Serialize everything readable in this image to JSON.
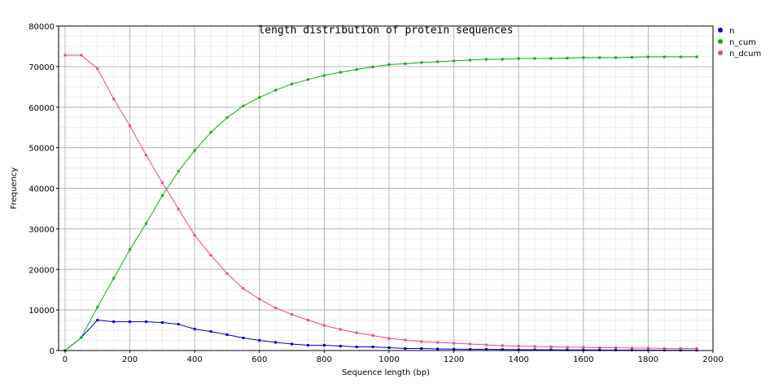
{
  "chart_data": {
    "type": "line",
    "title": "length distribution of protein sequences",
    "xlabel": "Sequence length (bp)",
    "ylabel": "Frequency",
    "xlim": [
      -20,
      2000
    ],
    "ylim": [
      0,
      80000
    ],
    "x_ticks": [
      "0",
      "200",
      "400",
      "600",
      "800",
      "1000",
      "1200",
      "1400",
      "1600",
      "1800",
      "2000"
    ],
    "y_ticks": [
      "0",
      "10000",
      "20000",
      "30000",
      "40000",
      "50000",
      "60000",
      "70000",
      "80000"
    ],
    "grid": true,
    "legend_position": "right",
    "x": [
      0,
      50,
      100,
      150,
      200,
      250,
      300,
      350,
      400,
      450,
      500,
      550,
      600,
      650,
      700,
      750,
      800,
      850,
      900,
      950,
      1000,
      1050,
      1100,
      1150,
      1200,
      1250,
      1300,
      1350,
      1400,
      1450,
      1500,
      1550,
      1600,
      1650,
      1700,
      1750,
      1800,
      1850,
      1900,
      1950
    ],
    "series": [
      {
        "name": "n",
        "color": "#0000cc",
        "values": [
          0,
          3200,
          7500,
          7100,
          7100,
          7100,
          6900,
          6500,
          5300,
          4700,
          3900,
          3100,
          2500,
          2000,
          1600,
          1300,
          1300,
          1100,
          900,
          900,
          700,
          500,
          500,
          400,
          350,
          300,
          300,
          250,
          200,
          200,
          180,
          150,
          150,
          120,
          100,
          100,
          100,
          90,
          80,
          80
        ]
      },
      {
        "name": "n_cum",
        "color": "#11aa11",
        "values": [
          0,
          3200,
          10700,
          17800,
          24900,
          31300,
          38200,
          44200,
          49300,
          53800,
          57400,
          60300,
          62400,
          64200,
          65700,
          66800,
          67800,
          68600,
          69300,
          69900,
          70500,
          70700,
          71000,
          71200,
          71400,
          71600,
          71800,
          71800,
          72000,
          72000,
          72000,
          72100,
          72200,
          72200,
          72200,
          72300,
          72400,
          72400,
          72400,
          72400
        ]
      },
      {
        "name": "n_dcum",
        "color": "#ee4488",
        "values": [
          72800,
          72800,
          69500,
          62000,
          55400,
          48200,
          41400,
          34900,
          28400,
          23500,
          19000,
          15300,
          12700,
          10500,
          8900,
          7500,
          6200,
          5200,
          4400,
          3700,
          3000,
          2600,
          2200,
          2000,
          1800,
          1600,
          1400,
          1200,
          1100,
          1000,
          900,
          800,
          800,
          700,
          700,
          600,
          600,
          500,
          500,
          500
        ]
      }
    ]
  }
}
